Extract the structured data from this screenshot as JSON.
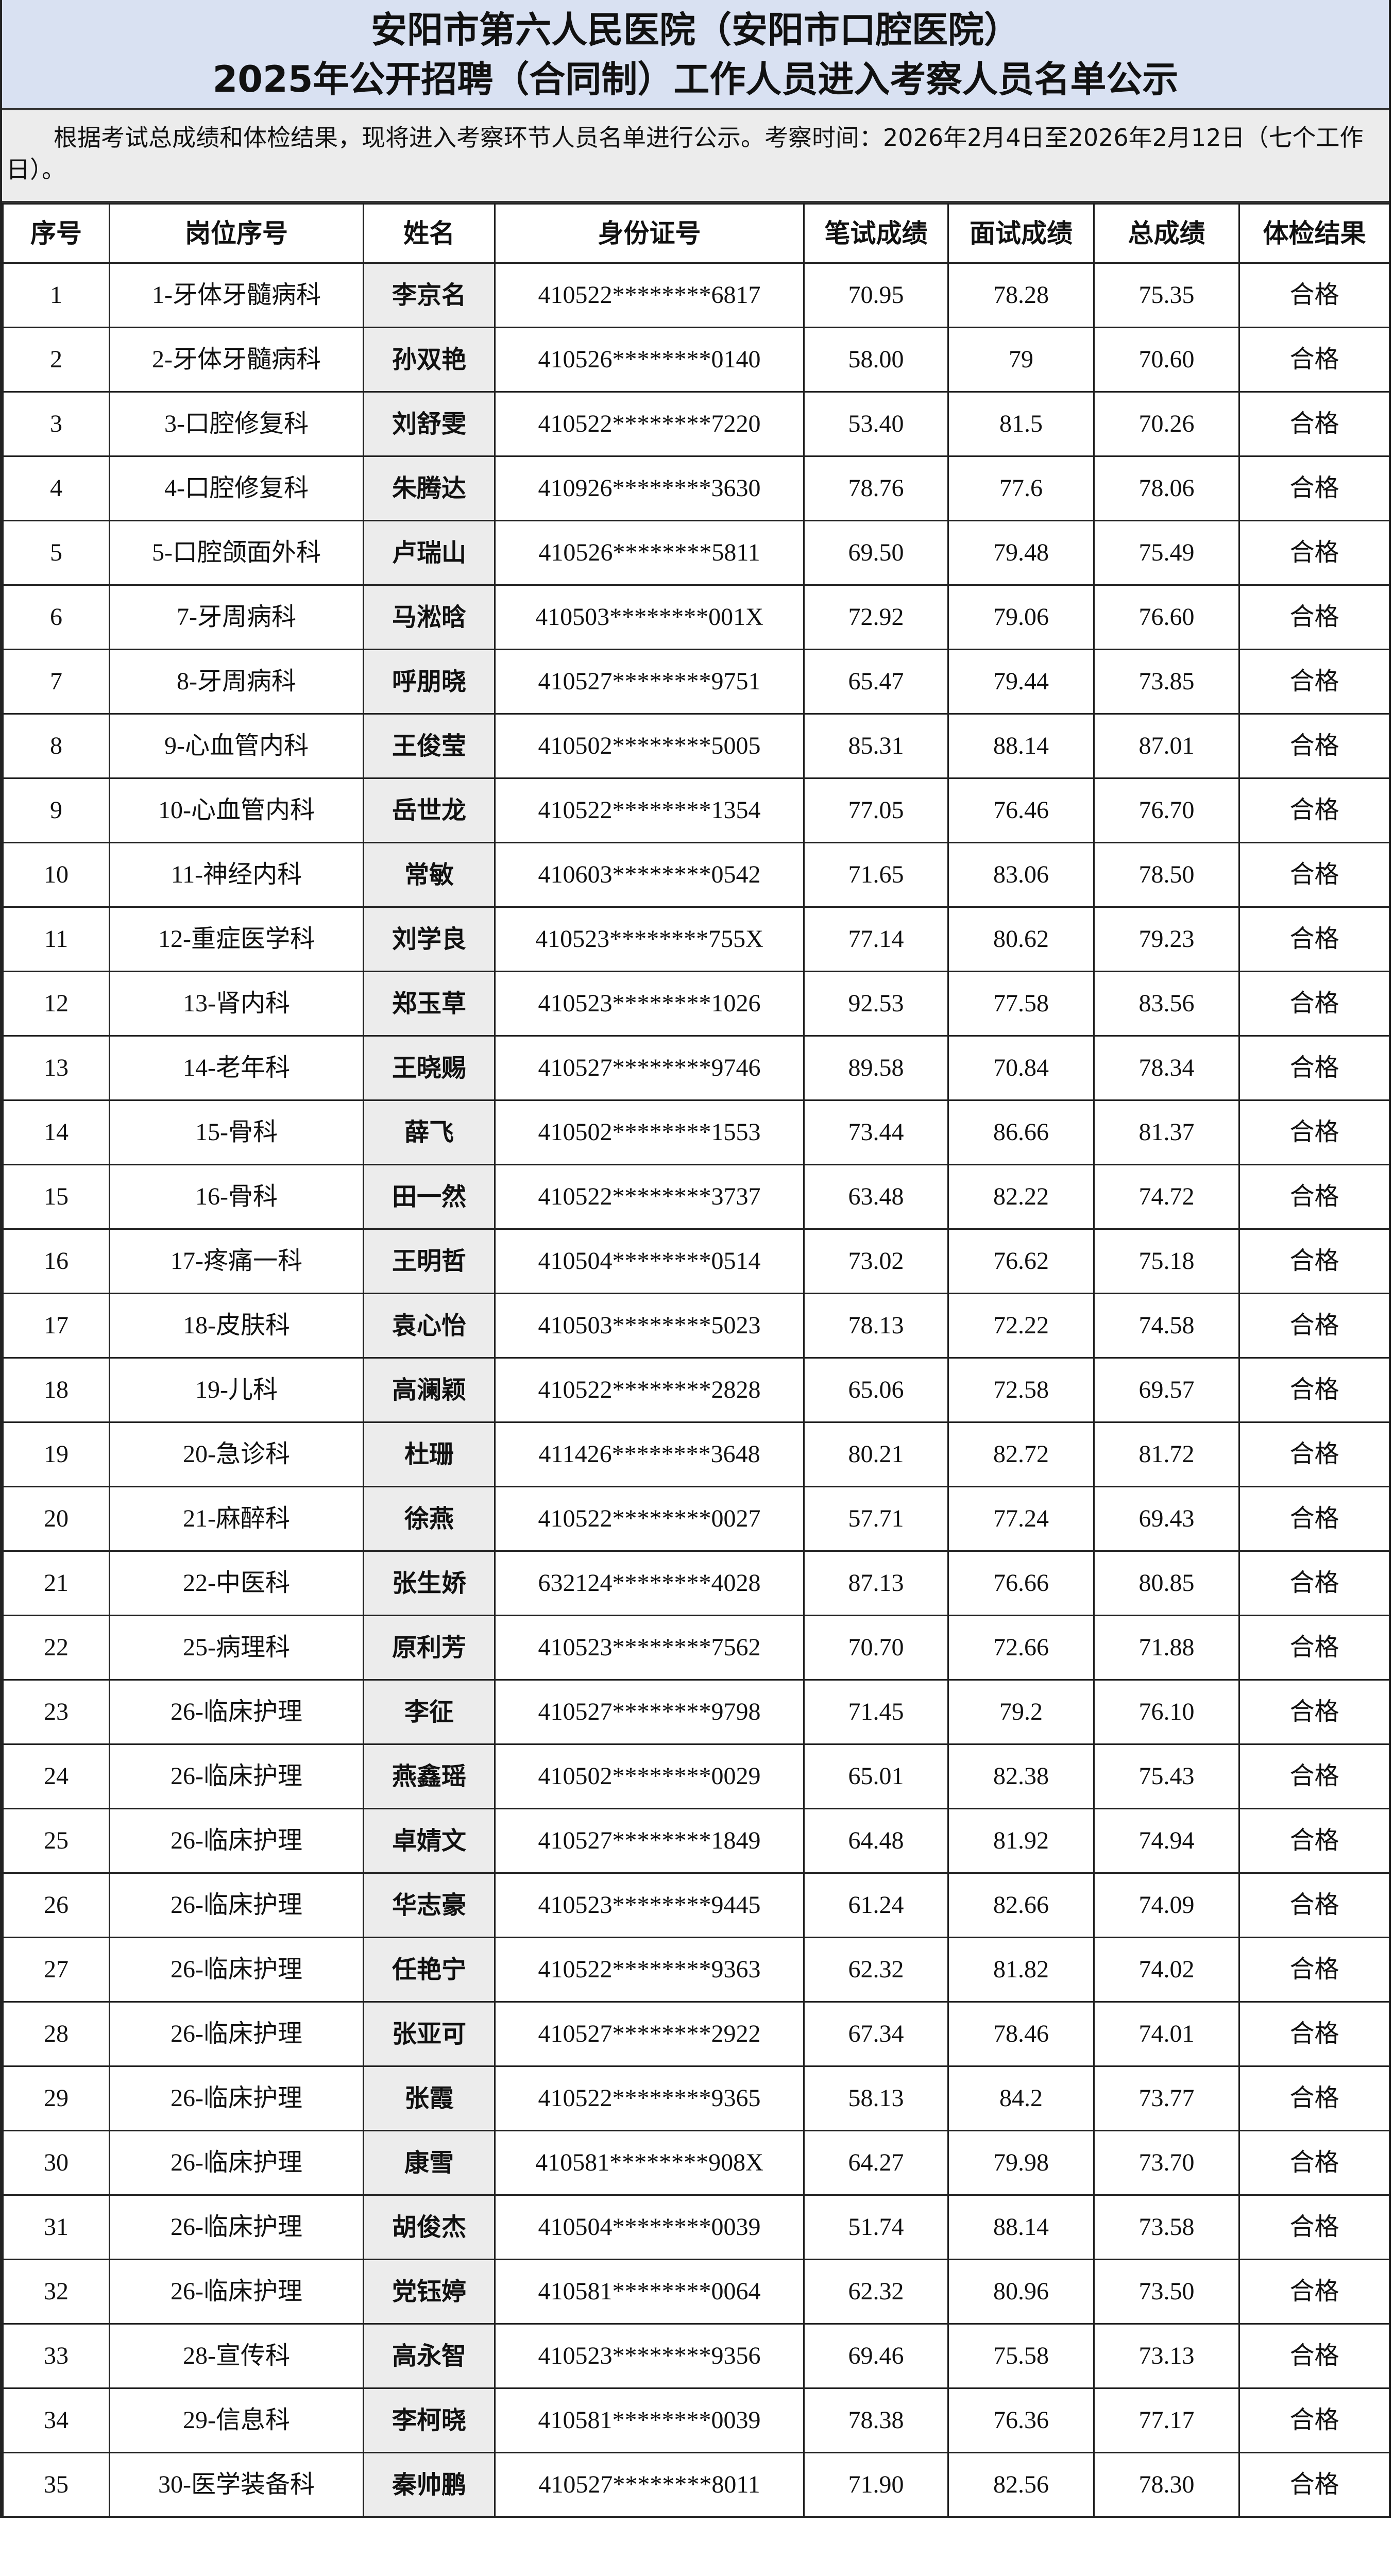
{
  "title": {
    "line1": "安阳市第六人民医院（安阳市口腔医院）",
    "line2": "2025年公开招聘（合同制）工作人员进入考察人员名单公示"
  },
  "note": "根据考试总成绩和体检结果，现将进入考察环节人员名单进行公示。考察时间：2026年2月4日至2026年2月12日（七个工作日）。",
  "headers": [
    "序号",
    "岗位序号",
    "姓名",
    "身份证号",
    "笔试成绩",
    "面试成绩",
    "总成绩",
    "体检结果"
  ],
  "rows": [
    [
      "1",
      "1-牙体牙髓病科",
      "李京名",
      "410522********6817",
      "70.95",
      "78.28",
      "75.35",
      "合格"
    ],
    [
      "2",
      "2-牙体牙髓病科",
      "孙双艳",
      "410526********0140",
      "58.00",
      "79",
      "70.60",
      "合格"
    ],
    [
      "3",
      "3-口腔修复科",
      "刘舒雯",
      "410522********7220",
      "53.40",
      "81.5",
      "70.26",
      "合格"
    ],
    [
      "4",
      "4-口腔修复科",
      "朱腾达",
      "410926********3630",
      "78.76",
      "77.6",
      "78.06",
      "合格"
    ],
    [
      "5",
      "5-口腔颌面外科",
      "卢瑞山",
      "410526********5811",
      "69.50",
      "79.48",
      "75.49",
      "合格"
    ],
    [
      "6",
      "7-牙周病科",
      "马淞晗",
      "410503********001X",
      "72.92",
      "79.06",
      "76.60",
      "合格"
    ],
    [
      "7",
      "8-牙周病科",
      "呼朋晓",
      "410527********9751",
      "65.47",
      "79.44",
      "73.85",
      "合格"
    ],
    [
      "8",
      "9-心血管内科",
      "王俊莹",
      "410502********5005",
      "85.31",
      "88.14",
      "87.01",
      "合格"
    ],
    [
      "9",
      "10-心血管内科",
      "岳世龙",
      "410522********1354",
      "77.05",
      "76.46",
      "76.70",
      "合格"
    ],
    [
      "10",
      "11-神经内科",
      "常敏",
      "410603********0542",
      "71.65",
      "83.06",
      "78.50",
      "合格"
    ],
    [
      "11",
      "12-重症医学科",
      "刘学良",
      "410523********755X",
      "77.14",
      "80.62",
      "79.23",
      "合格"
    ],
    [
      "12",
      "13-肾内科",
      "郑玉草",
      "410523********1026",
      "92.53",
      "77.58",
      "83.56",
      "合格"
    ],
    [
      "13",
      "14-老年科",
      "王晓赐",
      "410527********9746",
      "89.58",
      "70.84",
      "78.34",
      "合格"
    ],
    [
      "14",
      "15-骨科",
      "薛飞",
      "410502********1553",
      "73.44",
      "86.66",
      "81.37",
      "合格"
    ],
    [
      "15",
      "16-骨科",
      "田一然",
      "410522********3737",
      "63.48",
      "82.22",
      "74.72",
      "合格"
    ],
    [
      "16",
      "17-疼痛一科",
      "王明哲",
      "410504********0514",
      "73.02",
      "76.62",
      "75.18",
      "合格"
    ],
    [
      "17",
      "18-皮肤科",
      "袁心怡",
      "410503********5023",
      "78.13",
      "72.22",
      "74.58",
      "合格"
    ],
    [
      "18",
      "19-儿科",
      "高澜颖",
      "410522********2828",
      "65.06",
      "72.58",
      "69.57",
      "合格"
    ],
    [
      "19",
      "20-急诊科",
      "杜珊",
      "411426********3648",
      "80.21",
      "82.72",
      "81.72",
      "合格"
    ],
    [
      "20",
      "21-麻醉科",
      "徐燕",
      "410522********0027",
      "57.71",
      "77.24",
      "69.43",
      "合格"
    ],
    [
      "21",
      "22-中医科",
      "张生娇",
      "632124********4028",
      "87.13",
      "76.66",
      "80.85",
      "合格"
    ],
    [
      "22",
      "25-病理科",
      "原利芳",
      "410523********7562",
      "70.70",
      "72.66",
      "71.88",
      "合格"
    ],
    [
      "23",
      "26-临床护理",
      "李征",
      "410527********9798",
      "71.45",
      "79.2",
      "76.10",
      "合格"
    ],
    [
      "24",
      "26-临床护理",
      "燕鑫瑶",
      "410502********0029",
      "65.01",
      "82.38",
      "75.43",
      "合格"
    ],
    [
      "25",
      "26-临床护理",
      "卓婧文",
      "410527********1849",
      "64.48",
      "81.92",
      "74.94",
      "合格"
    ],
    [
      "26",
      "26-临床护理",
      "华志豪",
      "410523********9445",
      "61.24",
      "82.66",
      "74.09",
      "合格"
    ],
    [
      "27",
      "26-临床护理",
      "任艳宁",
      "410522********9363",
      "62.32",
      "81.82",
      "74.02",
      "合格"
    ],
    [
      "28",
      "26-临床护理",
      "张亚可",
      "410527********2922",
      "67.34",
      "78.46",
      "74.01",
      "合格"
    ],
    [
      "29",
      "26-临床护理",
      "张霞",
      "410522********9365",
      "58.13",
      "84.2",
      "73.77",
      "合格"
    ],
    [
      "30",
      "26-临床护理",
      "康雪",
      "410581********908X",
      "64.27",
      "79.98",
      "73.70",
      "合格"
    ],
    [
      "31",
      "26-临床护理",
      "胡俊杰",
      "410504********0039",
      "51.74",
      "88.14",
      "73.58",
      "合格"
    ],
    [
      "32",
      "26-临床护理",
      "党钰婷",
      "410581********0064",
      "62.32",
      "80.96",
      "73.50",
      "合格"
    ],
    [
      "33",
      "28-宣传科",
      "高永智",
      "410523********9356",
      "69.46",
      "75.58",
      "73.13",
      "合格"
    ],
    [
      "34",
      "29-信息科",
      "李柯晓",
      "410581********0039",
      "78.38",
      "76.36",
      "77.17",
      "合格"
    ],
    [
      "35",
      "30-医学装备科",
      "秦帅鹏",
      "410527********8011",
      "71.90",
      "82.56",
      "78.30",
      "合格"
    ]
  ]
}
